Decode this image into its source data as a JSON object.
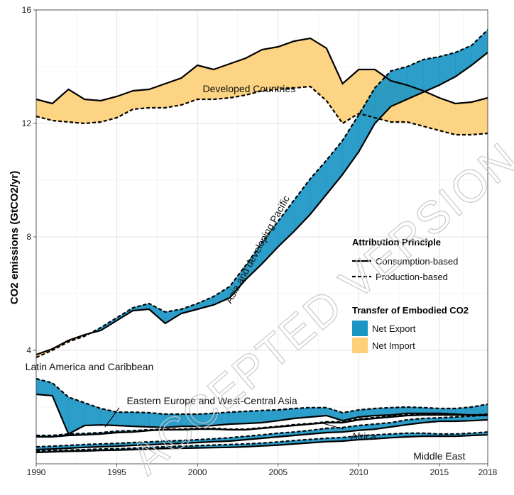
{
  "chart_data": {
    "type": "area",
    "title": "",
    "xlabel": "",
    "ylabel": "CO2 emissions (GtCO2/yr)",
    "xlim": [
      1990,
      2018
    ],
    "ylim": [
      0,
      16
    ],
    "x_ticks": [
      1990,
      1995,
      2000,
      2005,
      2010,
      2015,
      2018
    ],
    "y_ticks": [
      4,
      8,
      12,
      16
    ],
    "grid": true,
    "legend_placement": "right",
    "colors": {
      "net_export": "#1a96c4",
      "net_import": "#fdd079"
    },
    "x": [
      1990,
      1991,
      1992,
      1993,
      1994,
      1995,
      1996,
      1997,
      1998,
      1999,
      2000,
      2001,
      2002,
      2003,
      2004,
      2005,
      2006,
      2007,
      2008,
      2009,
      2010,
      2011,
      2012,
      2013,
      2014,
      2015,
      2016,
      2017,
      2018
    ],
    "series": [
      {
        "name": "Developed Countries",
        "consumption": [
          12.85,
          12.7,
          13.2,
          12.85,
          12.8,
          12.95,
          13.15,
          13.2,
          13.4,
          13.6,
          14.05,
          13.9,
          14.1,
          14.3,
          14.6,
          14.7,
          14.9,
          15.0,
          14.65,
          13.4,
          13.9,
          13.9,
          13.5,
          13.35,
          13.15,
          12.9,
          12.7,
          12.75,
          12.9
        ],
        "production": [
          12.25,
          12.1,
          12.05,
          12.0,
          12.05,
          12.2,
          12.5,
          12.55,
          12.55,
          12.65,
          12.85,
          12.85,
          12.9,
          13.0,
          13.15,
          13.2,
          13.25,
          13.3,
          12.8,
          12.0,
          12.35,
          12.2,
          12.05,
          12.05,
          11.9,
          11.75,
          11.6,
          11.6,
          11.65
        ]
      },
      {
        "name": "Asia and developing Pacific",
        "consumption": [
          3.85,
          4.05,
          4.35,
          4.55,
          4.7,
          5.05,
          5.4,
          5.45,
          4.95,
          5.3,
          5.45,
          5.6,
          5.85,
          6.5,
          7.05,
          7.65,
          8.2,
          8.8,
          9.5,
          10.2,
          11.0,
          12.0,
          12.6,
          12.85,
          13.1,
          13.35,
          13.65,
          14.05,
          14.5
        ],
        "production": [
          3.75,
          4.0,
          4.3,
          4.5,
          4.8,
          5.15,
          5.5,
          5.65,
          5.35,
          5.45,
          5.65,
          5.9,
          6.25,
          7.0,
          7.8,
          8.55,
          9.3,
          10.05,
          10.7,
          11.4,
          12.3,
          13.25,
          13.85,
          14.0,
          14.25,
          14.35,
          14.5,
          14.75,
          15.3
        ]
      },
      {
        "name": "Latin America and Caribbean",
        "consumption": [
          0.95,
          0.95,
          1.0,
          1.02,
          1.05,
          1.1,
          1.12,
          1.17,
          1.2,
          1.2,
          1.22,
          1.22,
          1.2,
          1.2,
          1.25,
          1.3,
          1.35,
          1.4,
          1.45,
          1.45,
          1.55,
          1.6,
          1.65,
          1.7,
          1.72,
          1.72,
          1.72,
          1.72,
          1.72
        ],
        "production": [
          1.0,
          1.0,
          1.05,
          1.07,
          1.1,
          1.15,
          1.17,
          1.2,
          1.22,
          1.22,
          1.25,
          1.25,
          1.22,
          1.22,
          1.27,
          1.32,
          1.38,
          1.42,
          1.48,
          1.48,
          1.58,
          1.63,
          1.68,
          1.73,
          1.75,
          1.73,
          1.72,
          1.72,
          1.75
        ]
      },
      {
        "name": "Eastern Europe and West-Central Asia",
        "consumption": [
          2.45,
          2.4,
          1.05,
          1.35,
          1.37,
          1.35,
          1.32,
          1.3,
          1.28,
          1.32,
          1.32,
          1.35,
          1.4,
          1.42,
          1.45,
          1.52,
          1.6,
          1.65,
          1.7,
          1.52,
          1.65,
          1.7,
          1.72,
          1.78,
          1.78,
          1.78,
          1.75,
          1.72,
          1.7
        ],
        "production": [
          3.0,
          2.85,
          2.35,
          2.15,
          1.95,
          1.82,
          1.82,
          1.8,
          1.75,
          1.75,
          1.75,
          1.78,
          1.82,
          1.85,
          1.88,
          1.9,
          1.95,
          1.98,
          1.98,
          1.8,
          1.9,
          1.95,
          1.98,
          2.0,
          1.98,
          1.95,
          1.95,
          2.0,
          2.1
        ]
      },
      {
        "name": "Africa",
        "consumption": [
          0.5,
          0.52,
          0.55,
          0.58,
          0.6,
          0.62,
          0.65,
          0.67,
          0.7,
          0.72,
          0.75,
          0.78,
          0.8,
          0.85,
          0.9,
          0.95,
          1.0,
          1.05,
          1.1,
          1.12,
          1.18,
          1.22,
          1.3,
          1.38,
          1.45,
          1.5,
          1.5,
          1.52,
          1.55
        ],
        "production": [
          0.6,
          0.62,
          0.65,
          0.68,
          0.7,
          0.72,
          0.75,
          0.77,
          0.8,
          0.82,
          0.85,
          0.88,
          0.92,
          0.97,
          1.02,
          1.08,
          1.12,
          1.18,
          1.25,
          1.28,
          1.35,
          1.4,
          1.45,
          1.55,
          1.6,
          1.62,
          1.65,
          1.68,
          1.72
        ]
      },
      {
        "name": "Middle East",
        "consumption": [
          0.4,
          0.42,
          0.44,
          0.45,
          0.47,
          0.48,
          0.5,
          0.52,
          0.54,
          0.55,
          0.56,
          0.57,
          0.58,
          0.6,
          0.63,
          0.66,
          0.7,
          0.74,
          0.78,
          0.8,
          0.85,
          0.88,
          0.92,
          0.95,
          0.97,
          0.97,
          0.97,
          1.0,
          1.02
        ],
        "production": [
          0.45,
          0.46,
          0.48,
          0.5,
          0.52,
          0.53,
          0.55,
          0.58,
          0.6,
          0.62,
          0.64,
          0.66,
          0.68,
          0.7,
          0.73,
          0.77,
          0.82,
          0.86,
          0.9,
          0.93,
          0.98,
          1.02,
          1.05,
          1.08,
          1.08,
          1.05,
          1.05,
          1.08,
          1.12
        ]
      }
    ],
    "region_labels": [
      {
        "text": "Developed Countries",
        "x": 2003.2,
        "y": 13.1,
        "angle": 0
      },
      {
        "text": "Asia and developing Pacific",
        "x": 2003.9,
        "y": 7.5,
        "angle": -61
      },
      {
        "text": "Latin America and Caribbean",
        "x": 1993.3,
        "y": 3.3,
        "angle": 0
      },
      {
        "text": "Eastern Europe and West-Central Asia",
        "x": 2000.9,
        "y": 2.1,
        "angle": 0
      },
      {
        "text": "Africa",
        "x": 2010.3,
        "y": 0.85,
        "angle": 0
      },
      {
        "text": "Middle East",
        "x": 2015.0,
        "y": 0.15,
        "angle": 0
      }
    ],
    "legend": {
      "line_title": "Attribution Principle",
      "line_items": [
        {
          "label": "Consumption-based",
          "style": "solid"
        },
        {
          "label": "Production-based",
          "style": "dashed"
        }
      ],
      "fill_title": "Transfer of Embodied CO2",
      "fill_items": [
        {
          "label": "Net Export",
          "color": "#1a96c4"
        },
        {
          "label": "Net Import",
          "color": "#fdd079"
        }
      ]
    },
    "watermark": "ACCEPTED VERSION SUBJECT TO FINAL EDITS"
  }
}
